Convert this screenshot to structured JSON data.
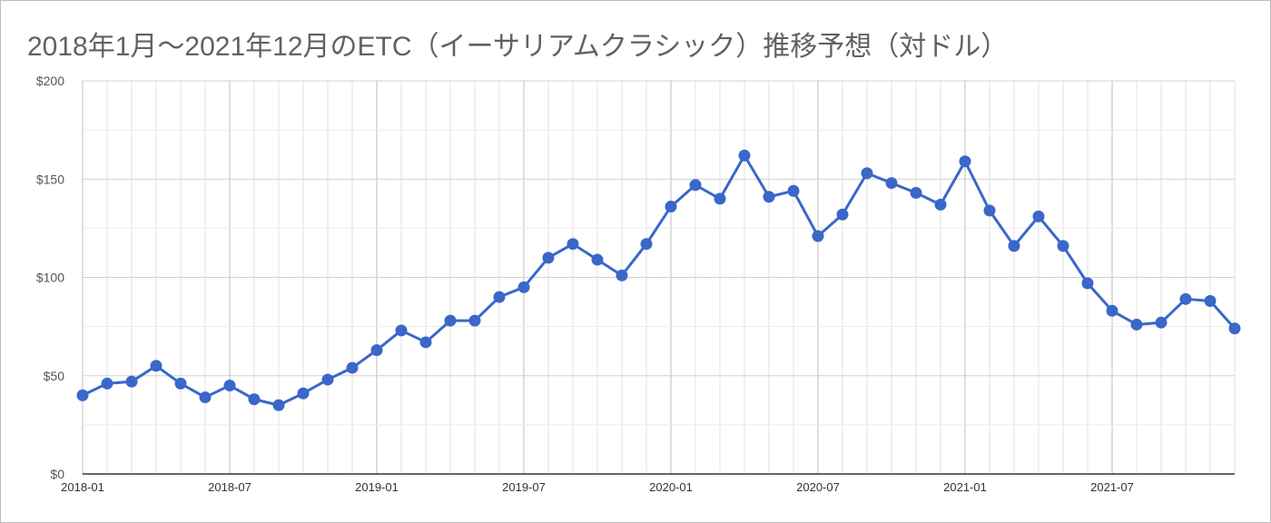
{
  "chart_data": {
    "type": "line",
    "title": "2018年1月〜2021年12月のETC（イーサリアムクラシック）推移予想（対ドル）",
    "xlabel": "",
    "ylabel": "",
    "ylim": [
      0,
      200
    ],
    "y_ticks": [
      0,
      50,
      100,
      150,
      200
    ],
    "y_tick_labels": [
      "$0",
      "$50",
      "$100",
      "$150",
      "$200"
    ],
    "x_tick_labels": [
      {
        "month_index": 0,
        "label": "2018-01"
      },
      {
        "month_index": 6,
        "label": "2018-07"
      },
      {
        "month_index": 12,
        "label": "2019-01"
      },
      {
        "month_index": 18,
        "label": "2019-07"
      },
      {
        "month_index": 24,
        "label": "2020-01"
      },
      {
        "month_index": 30,
        "label": "2020-07"
      },
      {
        "month_index": 36,
        "label": "2021-01"
      },
      {
        "month_index": 42,
        "label": "2021-07"
      }
    ],
    "grid": true,
    "legend": "none",
    "colors": {
      "series": "#3a67c9",
      "grid": "#e0e0e0",
      "axis": "#333333"
    },
    "x": [
      "2018-01",
      "2018-02",
      "2018-03",
      "2018-04",
      "2018-05",
      "2018-06",
      "2018-07",
      "2018-08",
      "2018-09",
      "2018-10",
      "2018-11",
      "2018-12",
      "2019-01",
      "2019-02",
      "2019-03",
      "2019-04",
      "2019-05",
      "2019-06",
      "2019-07",
      "2019-08",
      "2019-09",
      "2019-10",
      "2019-11",
      "2019-12",
      "2020-01",
      "2020-02",
      "2020-03",
      "2020-04",
      "2020-05",
      "2020-06",
      "2020-07",
      "2020-08",
      "2020-09",
      "2020-10",
      "2020-11",
      "2020-12",
      "2021-01",
      "2021-02",
      "2021-03",
      "2021-04",
      "2021-05",
      "2021-06",
      "2021-07",
      "2021-08",
      "2021-09",
      "2021-10",
      "2021-11",
      "2021-12"
    ],
    "series": [
      {
        "values": [
          40,
          46,
          47,
          55,
          46,
          39,
          45,
          38,
          35,
          41,
          48,
          54,
          63,
          73,
          67,
          78,
          78,
          90,
          95,
          110,
          117,
          109,
          101,
          117,
          136,
          147,
          140,
          162,
          141,
          144,
          121,
          132,
          153,
          148,
          143,
          137,
          159,
          134,
          116,
          131,
          116,
          97,
          83,
          76,
          77,
          89,
          88,
          74
        ]
      }
    ]
  }
}
